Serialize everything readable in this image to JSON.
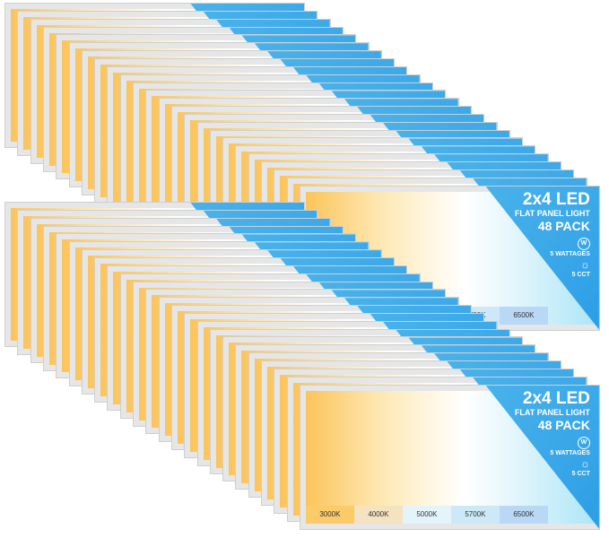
{
  "product": {
    "title": "2x4 LED",
    "subtitle": "FLAT PANEL LIGHT",
    "pack": "48 PACK",
    "wattage_icon": "W",
    "wattage_label": "5 WATTAGES",
    "cct_icon": "sun-thermometer-icon",
    "cct_label": "5 CCT"
  },
  "cct_options": [
    {
      "label": "3000K",
      "color": "#fbcb6a"
    },
    {
      "label": "4000K",
      "color": "#f3e3c0"
    },
    {
      "label": "5000K",
      "color": "#e4f4fb"
    },
    {
      "label": "5700K",
      "color": "#cde9f8"
    },
    {
      "label": "6500K",
      "color": "#b8d8f5"
    }
  ],
  "stacks": 2
}
